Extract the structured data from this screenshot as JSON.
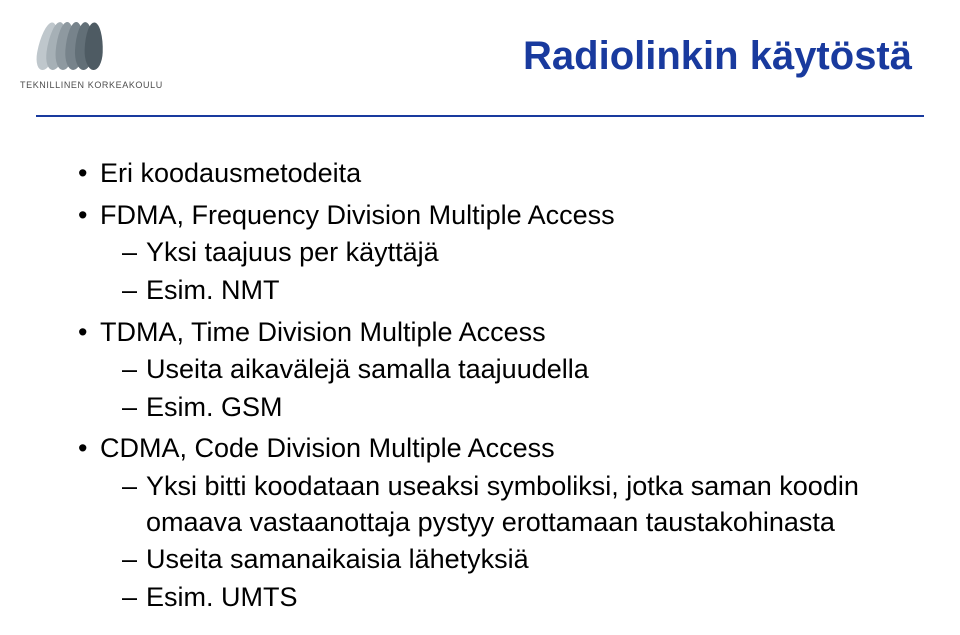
{
  "logo": {
    "org_text": "TEKNILLINEN KORKEAKOULU"
  },
  "title": {
    "text": "Radiolinkin käytöstä",
    "color": "#193a9e"
  },
  "divider_color": "#193a9e",
  "body_color": "#000000",
  "bullets": [
    {
      "text": "Eri koodausmetodeita",
      "children": []
    },
    {
      "text": "FDMA, Frequency Division Multiple Access",
      "children": [
        {
          "text": "Yksi taajuus per käyttäjä"
        },
        {
          "text": "Esim. NMT"
        }
      ]
    },
    {
      "text": "TDMA, Time Division Multiple Access",
      "children": [
        {
          "text": "Useita aikavälejä samalla taajuudella"
        },
        {
          "text": "Esim. GSM"
        }
      ]
    },
    {
      "text": "CDMA, Code Division Multiple Access",
      "children": [
        {
          "text": "Yksi bitti koodataan useaksi symboliksi, jotka saman koodin omaava vastaanottaja pystyy erottamaan taustakohinasta"
        },
        {
          "text": "Useita samanaikaisia lähetyksiä"
        },
        {
          "text": "Esim. UMTS"
        }
      ]
    }
  ]
}
